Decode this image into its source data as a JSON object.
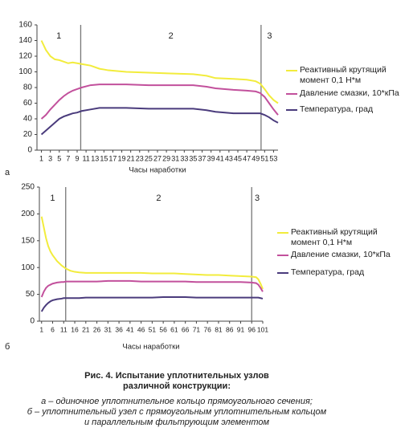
{
  "chart_data": [
    {
      "type": "line",
      "panel": "а",
      "xlabel": "Часы наработки",
      "xlim": [
        0,
        54
      ],
      "xticks": [
        1,
        3,
        5,
        7,
        9,
        11,
        13,
        15,
        17,
        19,
        21,
        23,
        25,
        27,
        29,
        31,
        33,
        35,
        37,
        39,
        41,
        43,
        45,
        47,
        49,
        51,
        53
      ],
      "ylim": [
        0,
        160
      ],
      "yticks": [
        0,
        20,
        40,
        60,
        80,
        100,
        120,
        140,
        160
      ],
      "zones": [
        "1",
        "2",
        "3"
      ],
      "dividers": [
        9.8,
        50.2
      ],
      "x": [
        1,
        2,
        3,
        4,
        5,
        6,
        7,
        8,
        9,
        10,
        12,
        14,
        16,
        18,
        20,
        25,
        30,
        35,
        38,
        40,
        44,
        47,
        49,
        50,
        51,
        52,
        53,
        54
      ],
      "series": [
        {
          "name": "Реактивный крутящий момент 0,1 Н*м",
          "color": "#f2ec3c",
          "values": [
            140,
            128,
            120,
            116,
            115,
            113,
            111,
            112,
            111,
            110,
            108,
            104,
            102,
            101,
            100,
            99,
            98,
            97,
            95,
            92,
            91,
            90,
            88,
            85,
            78,
            70,
            64,
            60
          ]
        },
        {
          "name": "Давление смазки, 10*кПа",
          "color": "#c2509c",
          "values": [
            40,
            45,
            52,
            58,
            64,
            69,
            73,
            76,
            78,
            80,
            83,
            84,
            84,
            84,
            84,
            83,
            83,
            83,
            81,
            79,
            77,
            76,
            75,
            73,
            68,
            60,
            52,
            45
          ]
        },
        {
          "name": "Температура, град",
          "color": "#4a3b7c",
          "values": [
            20,
            25,
            30,
            35,
            40,
            43,
            45,
            47,
            48,
            50,
            52,
            54,
            54,
            54,
            54,
            53,
            53,
            53,
            51,
            49,
            47,
            47,
            47,
            47,
            45,
            42,
            38,
            35
          ]
        }
      ]
    },
    {
      "type": "line",
      "panel": "б",
      "xlabel": "Часы наработки",
      "xlim": [
        0,
        101
      ],
      "xticks": [
        1,
        6,
        11,
        16,
        21,
        26,
        31,
        36,
        41,
        46,
        51,
        56,
        61,
        66,
        71,
        76,
        81,
        86,
        91,
        96,
        101
      ],
      "ylim": [
        0,
        250
      ],
      "yticks": [
        0,
        50,
        100,
        150,
        200,
        250
      ],
      "zones": [
        "1",
        "2",
        "3"
      ],
      "dividers": [
        11.9,
        96
      ],
      "x": [
        1,
        2,
        3,
        4,
        5,
        6,
        8,
        10,
        11,
        12,
        14,
        16,
        18,
        21,
        26,
        31,
        36,
        41,
        46,
        51,
        56,
        61,
        66,
        71,
        76,
        81,
        86,
        91,
        96,
        98,
        99,
        100,
        101
      ],
      "series": [
        {
          "name": "Реактивный крутящий момент 0,1 Н*м",
          "color": "#f2ec3c",
          "values": [
            195,
            175,
            155,
            140,
            130,
            123,
            112,
            104,
            101,
            98,
            94,
            92,
            91,
            90,
            90,
            90,
            90,
            90,
            90,
            89,
            89,
            89,
            88,
            87,
            86,
            86,
            85,
            84,
            83,
            82,
            78,
            70,
            60
          ]
        },
        {
          "name": "Давление смазки, 10*кПа",
          "color": "#c2509c",
          "values": [
            45,
            55,
            62,
            66,
            68,
            70,
            72,
            73,
            73,
            74,
            74,
            74,
            74,
            74,
            74,
            75,
            75,
            75,
            74,
            74,
            74,
            74,
            74,
            73,
            73,
            73,
            73,
            73,
            72,
            71,
            68,
            62,
            55
          ]
        },
        {
          "name": "Температура, град",
          "color": "#4a3b7c",
          "values": [
            18,
            25,
            30,
            34,
            37,
            39,
            41,
            42,
            43,
            43,
            43,
            43,
            43,
            44,
            44,
            44,
            44,
            44,
            44,
            44,
            45,
            45,
            45,
            44,
            44,
            44,
            44,
            44,
            44,
            44,
            44,
            43,
            42
          ]
        }
      ]
    }
  ],
  "caption": {
    "title": "Рис. 4. Испытание уплотнительных узлов различной конструкции:",
    "lines": [
      "а – одиночное уплотнительное кольцо прямоугольного сечения;",
      "б – уплотнительный узел с прямоугольным уплотнительным кольцом",
      "и параллельным фильтрующим элементом"
    ]
  }
}
